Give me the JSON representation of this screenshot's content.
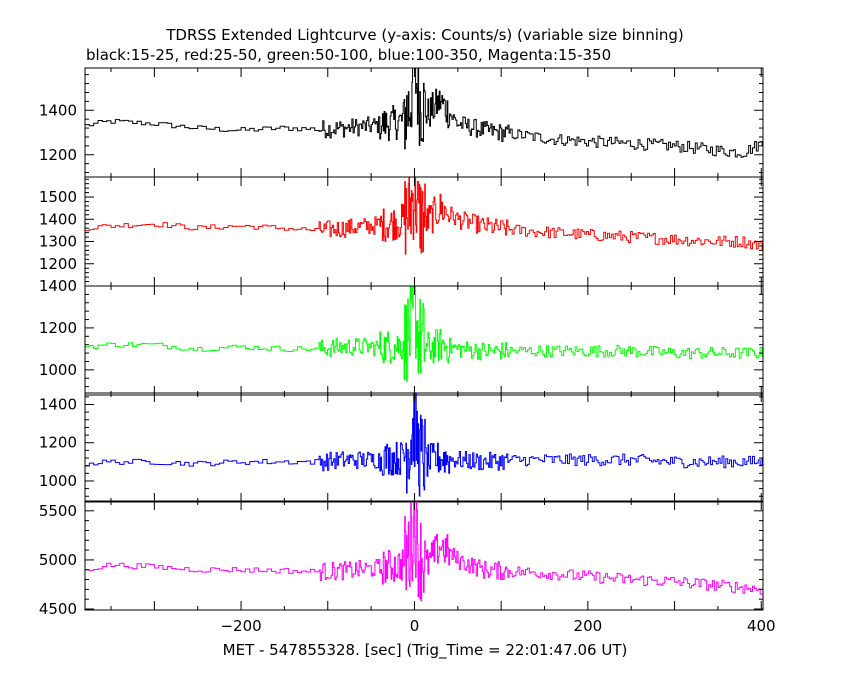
{
  "title": "TDRSS Extended Lightcurve (y-axis: Counts/s) (variable size binning)",
  "subtitle": "black:15-25, red:25-50, green:50-100, blue:100-350, Magenta:15-350",
  "xlabel": "MET - 547855328. [sec] (Trig_Time = 22:01:47.06 UT)",
  "chart_data": {
    "type": "line",
    "title": "TDRSS Extended Lightcurve (y-axis: Counts/s) (variable size binning)",
    "subtitle": "black:15-25, red:25-50, green:50-100, blue:100-350, Magenta:15-350",
    "xlabel": "MET - 547855328. [sec] (Trig_Time = 22:01:47.06 UT)",
    "ylabel": "Counts/s",
    "xlim": [
      -380,
      402
    ],
    "x_ticks": [
      -200,
      0,
      200,
      400
    ],
    "x_tick_labels": [
      "−200",
      "0",
      "200",
      "400"
    ],
    "grid": false,
    "legend": "none",
    "series": [
      {
        "name": "black:15-25",
        "color": "#000000",
        "ylim": [
          1100,
          1590
        ],
        "y_ticks": [
          1200,
          1400
        ],
        "x": [
          -380,
          -350,
          -300,
          -250,
          -200,
          -150,
          -110,
          -80,
          -50,
          -30,
          -15,
          -5,
          0,
          5,
          15,
          30,
          50,
          80,
          120,
          160,
          200,
          250,
          300,
          350,
          380,
          400
        ],
        "values": [
          1330,
          1350,
          1340,
          1320,
          1310,
          1320,
          1315,
          1320,
          1330,
          1340,
          1350,
          1420,
          1600,
          1450,
          1380,
          1440,
          1340,
          1310,
          1290,
          1270,
          1260,
          1250,
          1240,
          1220,
          1210,
          1250
        ]
      },
      {
        "name": "red:25-50",
        "color": "#ff0000",
        "ylim": [
          1100,
          1590
        ],
        "y_ticks": [
          1200,
          1300,
          1400,
          1500
        ],
        "x": [
          -380,
          -350,
          -300,
          -250,
          -200,
          -150,
          -110,
          -80,
          -50,
          -30,
          -15,
          -5,
          0,
          5,
          15,
          30,
          50,
          80,
          120,
          160,
          200,
          250,
          300,
          350,
          380,
          400
        ],
        "values": [
          1360,
          1370,
          1380,
          1360,
          1370,
          1360,
          1350,
          1360,
          1370,
          1380,
          1390,
          1450,
          1520,
          1420,
          1390,
          1450,
          1400,
          1370,
          1350,
          1340,
          1330,
          1320,
          1310,
          1300,
          1300,
          1280
        ]
      },
      {
        "name": "green:50-100",
        "color": "#00ff00",
        "ylim": [
          880,
          1400
        ],
        "y_ticks": [
          1000,
          1200,
          1400
        ],
        "x": [
          -380,
          -350,
          -300,
          -250,
          -200,
          -150,
          -110,
          -80,
          -50,
          -30,
          -15,
          -5,
          0,
          5,
          15,
          30,
          50,
          80,
          120,
          160,
          200,
          250,
          300,
          350,
          380,
          400
        ],
        "values": [
          1110,
          1120,
          1120,
          1100,
          1110,
          1100,
          1100,
          1110,
          1110,
          1110,
          1120,
          1180,
          1300,
          1150,
          1100,
          1120,
          1100,
          1090,
          1090,
          1090,
          1090,
          1090,
          1080,
          1080,
          1080,
          1080
        ]
      },
      {
        "name": "blue:100-350",
        "color": "#0000ff",
        "ylim": [
          890,
          1460
        ],
        "y_ticks": [
          1000,
          1200,
          1400
        ],
        "x": [
          -380,
          -350,
          -300,
          -250,
          -200,
          -150,
          -110,
          -80,
          -50,
          -30,
          -15,
          -5,
          0,
          5,
          15,
          30,
          50,
          80,
          120,
          160,
          200,
          250,
          300,
          350,
          380,
          400
        ],
        "values": [
          1090,
          1100,
          1100,
          1090,
          1100,
          1100,
          1100,
          1110,
          1110,
          1120,
          1120,
          1200,
          1300,
          1150,
          1100,
          1120,
          1110,
          1100,
          1110,
          1110,
          1110,
          1110,
          1100,
          1100,
          1100,
          1100
        ]
      },
      {
        "name": "Magenta:15-350",
        "color": "#ff00ff",
        "ylim": [
          4490,
          5600
        ],
        "y_ticks": [
          4500,
          5000,
          5500
        ],
        "x": [
          -380,
          -350,
          -300,
          -250,
          -200,
          -150,
          -110,
          -80,
          -50,
          -30,
          -15,
          -5,
          0,
          5,
          15,
          30,
          50,
          80,
          120,
          160,
          200,
          250,
          300,
          350,
          380,
          400
        ],
        "values": [
          4900,
          4950,
          4930,
          4900,
          4900,
          4890,
          4880,
          4890,
          4910,
          4930,
          4950,
          5100,
          5400,
          5050,
          4950,
          5150,
          5000,
          4900,
          4880,
          4860,
          4830,
          4800,
          4780,
          4740,
          4720,
          4700
        ]
      }
    ]
  }
}
